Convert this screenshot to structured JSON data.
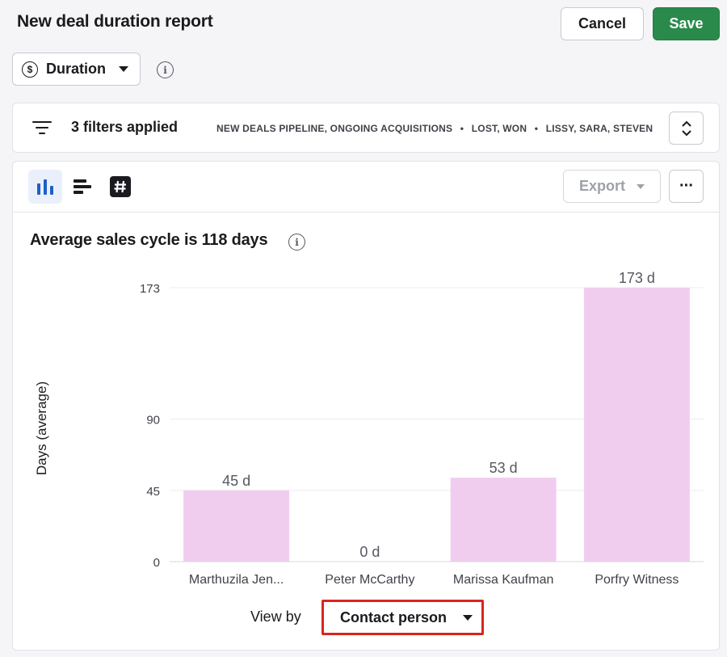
{
  "header": {
    "title": "New deal duration report",
    "cancel_label": "Cancel",
    "save_label": "Save",
    "save_color": "#2a8a4c"
  },
  "metric_select": {
    "icon": "dollar-circle-icon",
    "label": "Duration"
  },
  "filters": {
    "count_label": "3 filters applied",
    "summary": [
      "NEW DEALS PIPELINE, ONGOING ACQUISITIONS",
      "LOST, WON",
      "LISSY, SARA, STEVEN"
    ],
    "separator": "•"
  },
  "toolbar": {
    "views": [
      "vertical-bar-chart-icon",
      "horizontal-bar-chart-icon",
      "number-table-icon"
    ],
    "active_view": "vertical-bar-chart-icon",
    "export_label": "Export",
    "more_label": "···"
  },
  "chart": {
    "title": "Average sales cycle is 118 days"
  },
  "chart_data": {
    "type": "bar",
    "categories": [
      "Marthuzila Jen...",
      "Peter McCarthy",
      "Marissa Kaufman",
      "Porfry Witness"
    ],
    "values": [
      45,
      0,
      53,
      173
    ],
    "data_labels": [
      "45 d",
      "0 d",
      "53 d",
      "173 d"
    ],
    "ylabel": "Days (average)",
    "yticks": [
      0,
      45,
      90,
      173
    ],
    "ylim": [
      0,
      173
    ],
    "grid": true,
    "bar_color": "#f0cdee"
  },
  "view_by": {
    "label": "View by",
    "value": "Contact person",
    "highlight_color": "#d9261c"
  }
}
